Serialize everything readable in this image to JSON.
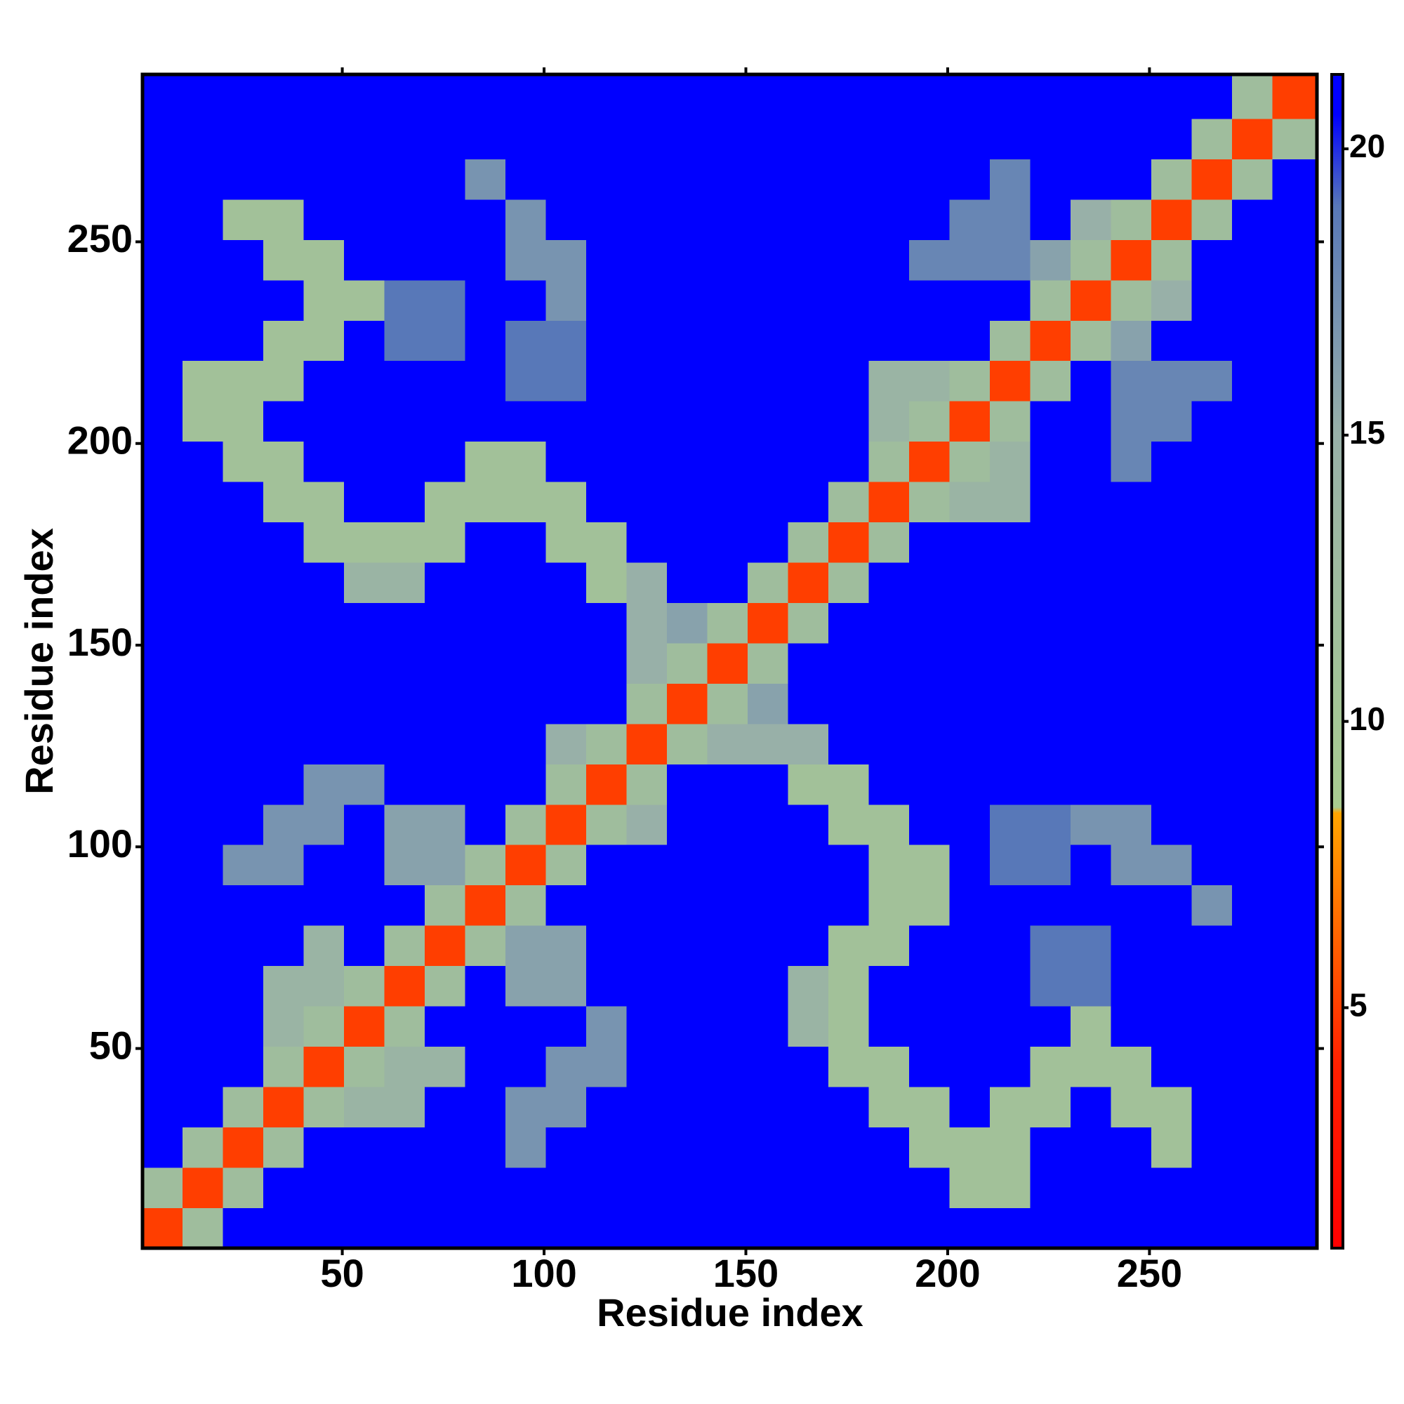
{
  "chart_data": {
    "type": "heatmap",
    "xlabel": "Residue index",
    "ylabel": "Residue index",
    "bins": [
      0.5,
      10.5,
      20.5,
      30.5,
      40.5,
      50.5,
      60.5,
      70.5,
      80.5,
      90.5,
      100.5,
      110.5,
      120.5,
      130.5,
      140.5,
      150.5,
      160.5,
      170.5,
      180.5,
      190.5,
      200.5,
      210.5,
      220.5,
      230.5,
      240.5,
      250.5,
      260.5,
      270.5,
      280.5,
      291.5
    ],
    "z": [
      [
        5,
        12,
        21,
        21,
        21,
        21,
        21,
        21,
        21,
        21,
        21,
        21,
        21,
        21,
        21,
        21,
        21,
        21,
        21,
        21,
        21,
        21,
        21,
        21,
        21,
        21,
        21,
        21,
        21
      ],
      [
        12,
        5,
        12,
        21,
        21,
        21,
        21,
        21,
        21,
        21,
        21,
        21,
        21,
        21,
        21,
        21,
        21,
        21,
        21,
        21,
        11,
        11,
        21,
        21,
        21,
        21,
        21,
        21,
        21
      ],
      [
        21,
        12,
        5,
        12,
        21,
        21,
        21,
        21,
        21,
        17,
        21,
        21,
        21,
        21,
        21,
        21,
        21,
        21,
        21,
        11,
        11,
        11,
        21,
        21,
        21,
        11,
        21,
        21,
        21
      ],
      [
        21,
        21,
        12,
        5,
        12,
        14,
        14,
        21,
        21,
        17,
        17,
        21,
        21,
        21,
        21,
        21,
        21,
        21,
        11,
        11,
        21,
        11,
        11,
        21,
        11,
        11,
        21,
        21,
        21
      ],
      [
        21,
        21,
        21,
        12,
        5,
        12,
        14,
        14,
        21,
        21,
        17,
        17,
        21,
        21,
        21,
        21,
        21,
        11,
        11,
        21,
        21,
        21,
        11,
        11,
        11,
        21,
        21,
        21,
        21
      ],
      [
        21,
        21,
        21,
        14,
        12,
        5,
        12,
        21,
        21,
        21,
        21,
        17,
        21,
        21,
        21,
        21,
        14,
        11,
        21,
        21,
        21,
        21,
        21,
        11,
        21,
        21,
        21,
        21,
        21
      ],
      [
        21,
        21,
        21,
        14,
        14,
        12,
        5,
        12,
        21,
        16,
        16,
        21,
        21,
        21,
        21,
        21,
        14,
        11,
        21,
        21,
        21,
        21,
        19,
        19,
        21,
        21,
        21,
        21,
        21
      ],
      [
        21,
        21,
        21,
        21,
        14,
        21,
        12,
        5,
        12,
        16,
        16,
        21,
        21,
        21,
        21,
        21,
        21,
        11,
        11,
        21,
        21,
        21,
        19,
        19,
        21,
        21,
        21,
        21,
        21
      ],
      [
        21,
        21,
        21,
        21,
        21,
        21,
        21,
        12,
        5,
        12,
        21,
        21,
        21,
        21,
        21,
        21,
        21,
        21,
        11,
        11,
        21,
        21,
        21,
        21,
        21,
        21,
        17,
        21,
        21
      ],
      [
        21,
        21,
        17,
        17,
        21,
        21,
        16,
        16,
        12,
        5,
        12,
        21,
        21,
        21,
        21,
        21,
        21,
        21,
        11,
        11,
        21,
        19,
        19,
        21,
        17,
        17,
        21,
        21,
        21
      ],
      [
        21,
        21,
        21,
        17,
        17,
        21,
        16,
        16,
        21,
        12,
        5,
        12,
        15,
        21,
        21,
        21,
        21,
        11,
        11,
        21,
        21,
        19,
        19,
        17,
        17,
        21,
        21,
        21,
        21
      ],
      [
        21,
        21,
        21,
        21,
        17,
        17,
        21,
        21,
        21,
        21,
        12,
        5,
        12,
        21,
        21,
        21,
        11,
        11,
        21,
        21,
        21,
        21,
        21,
        21,
        21,
        21,
        21,
        21,
        21
      ],
      [
        21,
        21,
        21,
        21,
        21,
        21,
        21,
        21,
        21,
        21,
        15,
        12,
        5,
        12,
        15,
        15,
        15,
        21,
        21,
        21,
        21,
        21,
        21,
        21,
        21,
        21,
        21,
        21,
        21
      ],
      [
        21,
        21,
        21,
        21,
        21,
        21,
        21,
        21,
        21,
        21,
        21,
        21,
        12,
        5,
        12,
        16,
        21,
        21,
        21,
        21,
        21,
        21,
        21,
        21,
        21,
        21,
        21,
        21,
        21
      ],
      [
        21,
        21,
        21,
        21,
        21,
        21,
        21,
        21,
        21,
        21,
        21,
        21,
        15,
        12,
        5,
        12,
        21,
        21,
        21,
        21,
        21,
        21,
        21,
        21,
        21,
        21,
        21,
        21,
        21
      ],
      [
        21,
        21,
        21,
        21,
        21,
        21,
        21,
        21,
        21,
        21,
        21,
        21,
        15,
        16,
        12,
        5,
        12,
        21,
        21,
        21,
        21,
        21,
        21,
        21,
        21,
        21,
        21,
        21,
        21
      ],
      [
        21,
        21,
        21,
        21,
        21,
        14,
        14,
        21,
        21,
        21,
        21,
        11,
        15,
        21,
        21,
        12,
        5,
        12,
        21,
        21,
        21,
        21,
        21,
        21,
        21,
        21,
        21,
        21,
        21
      ],
      [
        21,
        21,
        21,
        21,
        11,
        11,
        11,
        11,
        21,
        21,
        11,
        11,
        21,
        21,
        21,
        21,
        12,
        5,
        12,
        21,
        21,
        21,
        21,
        21,
        21,
        21,
        21,
        21,
        21
      ],
      [
        21,
        21,
        21,
        11,
        11,
        21,
        21,
        11,
        11,
        11,
        11,
        21,
        21,
        21,
        21,
        21,
        21,
        12,
        5,
        12,
        14,
        14,
        21,
        21,
        21,
        21,
        21,
        21,
        21
      ],
      [
        21,
        21,
        11,
        11,
        21,
        21,
        21,
        21,
        11,
        11,
        21,
        21,
        21,
        21,
        21,
        21,
        21,
        21,
        12,
        5,
        12,
        14,
        21,
        21,
        18,
        21,
        21,
        21,
        21
      ],
      [
        21,
        11,
        11,
        21,
        21,
        21,
        21,
        21,
        21,
        21,
        21,
        21,
        21,
        21,
        21,
        21,
        21,
        21,
        14,
        12,
        5,
        12,
        21,
        21,
        18,
        18,
        21,
        21,
        21
      ],
      [
        21,
        11,
        11,
        11,
        21,
        21,
        21,
        21,
        21,
        19,
        19,
        21,
        21,
        21,
        21,
        21,
        21,
        21,
        14,
        14,
        12,
        5,
        12,
        21,
        18,
        18,
        18,
        21,
        21
      ],
      [
        21,
        21,
        21,
        11,
        11,
        21,
        19,
        19,
        21,
        19,
        19,
        21,
        21,
        21,
        21,
        21,
        21,
        21,
        21,
        21,
        21,
        12,
        5,
        12,
        16,
        21,
        21,
        21,
        21
      ],
      [
        21,
        21,
        21,
        21,
        11,
        11,
        19,
        19,
        21,
        21,
        17,
        21,
        21,
        21,
        21,
        21,
        21,
        21,
        21,
        21,
        21,
        21,
        12,
        5,
        12,
        15,
        21,
        21,
        21
      ],
      [
        21,
        21,
        21,
        11,
        11,
        21,
        21,
        21,
        21,
        17,
        17,
        21,
        21,
        21,
        21,
        21,
        21,
        21,
        21,
        18,
        18,
        18,
        16,
        12,
        5,
        12,
        21,
        21,
        21
      ],
      [
        21,
        21,
        11,
        11,
        21,
        21,
        21,
        21,
        21,
        17,
        21,
        21,
        21,
        21,
        21,
        21,
        21,
        21,
        21,
        21,
        18,
        18,
        21,
        15,
        12,
        5,
        12,
        21,
        21
      ],
      [
        21,
        21,
        21,
        21,
        21,
        21,
        21,
        21,
        17,
        21,
        21,
        21,
        21,
        21,
        21,
        21,
        21,
        21,
        21,
        21,
        21,
        18,
        21,
        21,
        21,
        12,
        5,
        12,
        21
      ],
      [
        21,
        21,
        21,
        21,
        21,
        21,
        21,
        21,
        21,
        21,
        21,
        21,
        21,
        21,
        21,
        21,
        21,
        21,
        21,
        21,
        21,
        21,
        21,
        21,
        21,
        21,
        12,
        5,
        12
      ],
      [
        21,
        21,
        21,
        21,
        21,
        21,
        21,
        21,
        21,
        21,
        21,
        21,
        21,
        21,
        21,
        21,
        21,
        21,
        21,
        21,
        21,
        21,
        21,
        21,
        21,
        21,
        21,
        12,
        5
      ]
    ],
    "xlim": [
      0.5,
      291.5
    ],
    "ylim": [
      0.5,
      291.5
    ],
    "xticks": [
      50,
      100,
      150,
      200,
      250
    ],
    "yticks": [
      50,
      100,
      150,
      200,
      250
    ],
    "colorbar": {
      "lim": [
        0.8,
        21.3
      ],
      "ticks": [
        5,
        10,
        15,
        20
      ]
    },
    "colorscale": [
      [
        0.8,
        "#ff0000"
      ],
      [
        4,
        "#ff2000"
      ],
      [
        8.4,
        "#ffa500"
      ],
      [
        8.5,
        "#a8cc90"
      ],
      [
        15,
        "#98b0a8"
      ],
      [
        19,
        "#5878b8"
      ],
      [
        20.6,
        "#0000ff"
      ],
      [
        21.3,
        "#0000ff"
      ]
    ]
  }
}
